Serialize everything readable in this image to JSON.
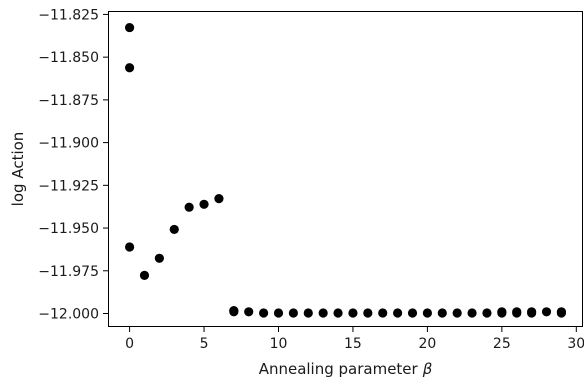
{
  "chart_data": {
    "type": "scatter",
    "title": "",
    "xlabel": "Annealing parameter",
    "xlabel_symbol": "β",
    "ylabel": "log Action",
    "xlim": [
      -1.45,
      30.45
    ],
    "ylim": [
      -12.0079,
      -11.823
    ],
    "xticks": [
      0,
      5,
      10,
      15,
      20,
      25,
      30
    ],
    "xtick_labels": [
      "0",
      "5",
      "10",
      "15",
      "20",
      "25",
      "30"
    ],
    "yticks": [
      -11.825,
      -11.85,
      -11.875,
      -11.9,
      -11.925,
      -11.95,
      -11.975,
      -12.0
    ],
    "ytick_labels": [
      "−11.825",
      "−11.850",
      "−11.875",
      "−11.900",
      "−11.925",
      "−11.950",
      "−11.975",
      "−12.000"
    ],
    "grid": false,
    "marker_color": "#000000",
    "series": [
      {
        "points": [
          [
            0,
            -11.8327
          ],
          [
            0,
            -11.8562
          ],
          [
            0,
            -11.9611
          ],
          [
            1,
            -11.9777
          ],
          [
            2,
            -11.9677
          ],
          [
            3,
            -11.9508
          ],
          [
            4,
            -11.9378
          ],
          [
            5,
            -11.9361
          ],
          [
            6,
            -11.9328
          ],
          [
            7,
            -11.9983
          ],
          [
            7,
            -11.999
          ],
          [
            8,
            -11.999
          ],
          [
            9,
            -11.9997
          ],
          [
            10,
            -11.9997
          ],
          [
            11,
            -11.9997
          ],
          [
            12,
            -11.9997
          ],
          [
            13,
            -11.9997
          ],
          [
            14,
            -11.9997
          ],
          [
            15,
            -11.9997
          ],
          [
            16,
            -11.9997
          ],
          [
            17,
            -11.9997
          ],
          [
            18,
            -11.9997
          ],
          [
            19,
            -11.9997
          ],
          [
            20,
            -11.9997
          ],
          [
            21,
            -11.9997
          ],
          [
            22,
            -11.9997
          ],
          [
            23,
            -11.9997
          ],
          [
            24,
            -11.9997
          ],
          [
            25,
            -11.9997
          ],
          [
            25,
            -11.999
          ],
          [
            26,
            -11.999
          ],
          [
            26,
            -11.9997
          ],
          [
            27,
            -11.9997
          ],
          [
            27,
            -11.999
          ],
          [
            28,
            -11.999
          ],
          [
            29,
            -11.9997
          ],
          [
            29,
            -11.999
          ]
        ]
      }
    ]
  }
}
